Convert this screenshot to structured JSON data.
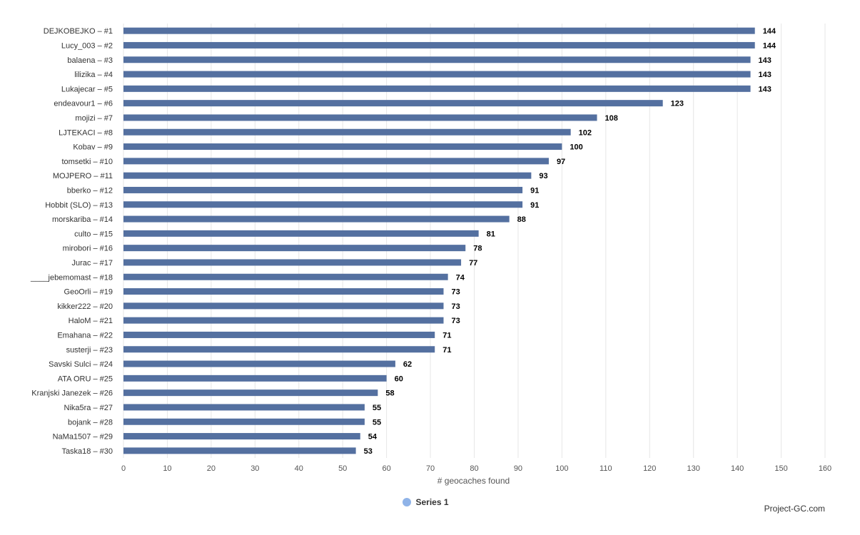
{
  "chart_data": {
    "type": "bar",
    "orientation": "horizontal",
    "categories": [
      "DEJKOBEJKO – #1",
      "Lucy_003 – #2",
      "balaena – #3",
      "lilizika – #4",
      "Lukajecar – #5",
      "endeavour1 – #6",
      "mojizi – #7",
      "LJTEKACI – #8",
      "Kobav – #9",
      "tomsetki – #10",
      "MOJPERO – #11",
      "bberko – #12",
      "Hobbit (SLO) – #13",
      "morskariba – #14",
      "culto – #15",
      "mirobori – #16",
      "Jurac – #17",
      "____jebemomast – #18",
      "GeoOrli – #19",
      "kikker222 – #20",
      "HaloM – #21",
      "Emahana – #22",
      "susterji – #23",
      "Savski Sulci – #24",
      "ATA ORU – #25",
      "Kranjski Janezek – #26",
      "Nika5ra – #27",
      "bojank – #28",
      "NaMa1507 – #29",
      "Taska18 – #30"
    ],
    "series": [
      {
        "name": "Series 1",
        "values": [
          144,
          144,
          143,
          143,
          143,
          123,
          108,
          102,
          100,
          97,
          93,
          91,
          91,
          88,
          81,
          78,
          77,
          74,
          73,
          73,
          73,
          71,
          71,
          62,
          60,
          58,
          55,
          55,
          54,
          53
        ]
      }
    ],
    "xlabel": "# geocaches found",
    "xlim": [
      0,
      160
    ],
    "xticks": [
      0,
      10,
      20,
      30,
      40,
      50,
      60,
      70,
      80,
      90,
      100,
      110,
      120,
      130,
      140,
      150,
      160
    ],
    "grid": true,
    "legend_position": "bottom-center",
    "data_labels": true,
    "colors": {
      "bar": "#5470a0",
      "legend_swatch": "#8fb3e8",
      "grid": "#e6e6e6"
    }
  },
  "credit": "Project-GC.com"
}
